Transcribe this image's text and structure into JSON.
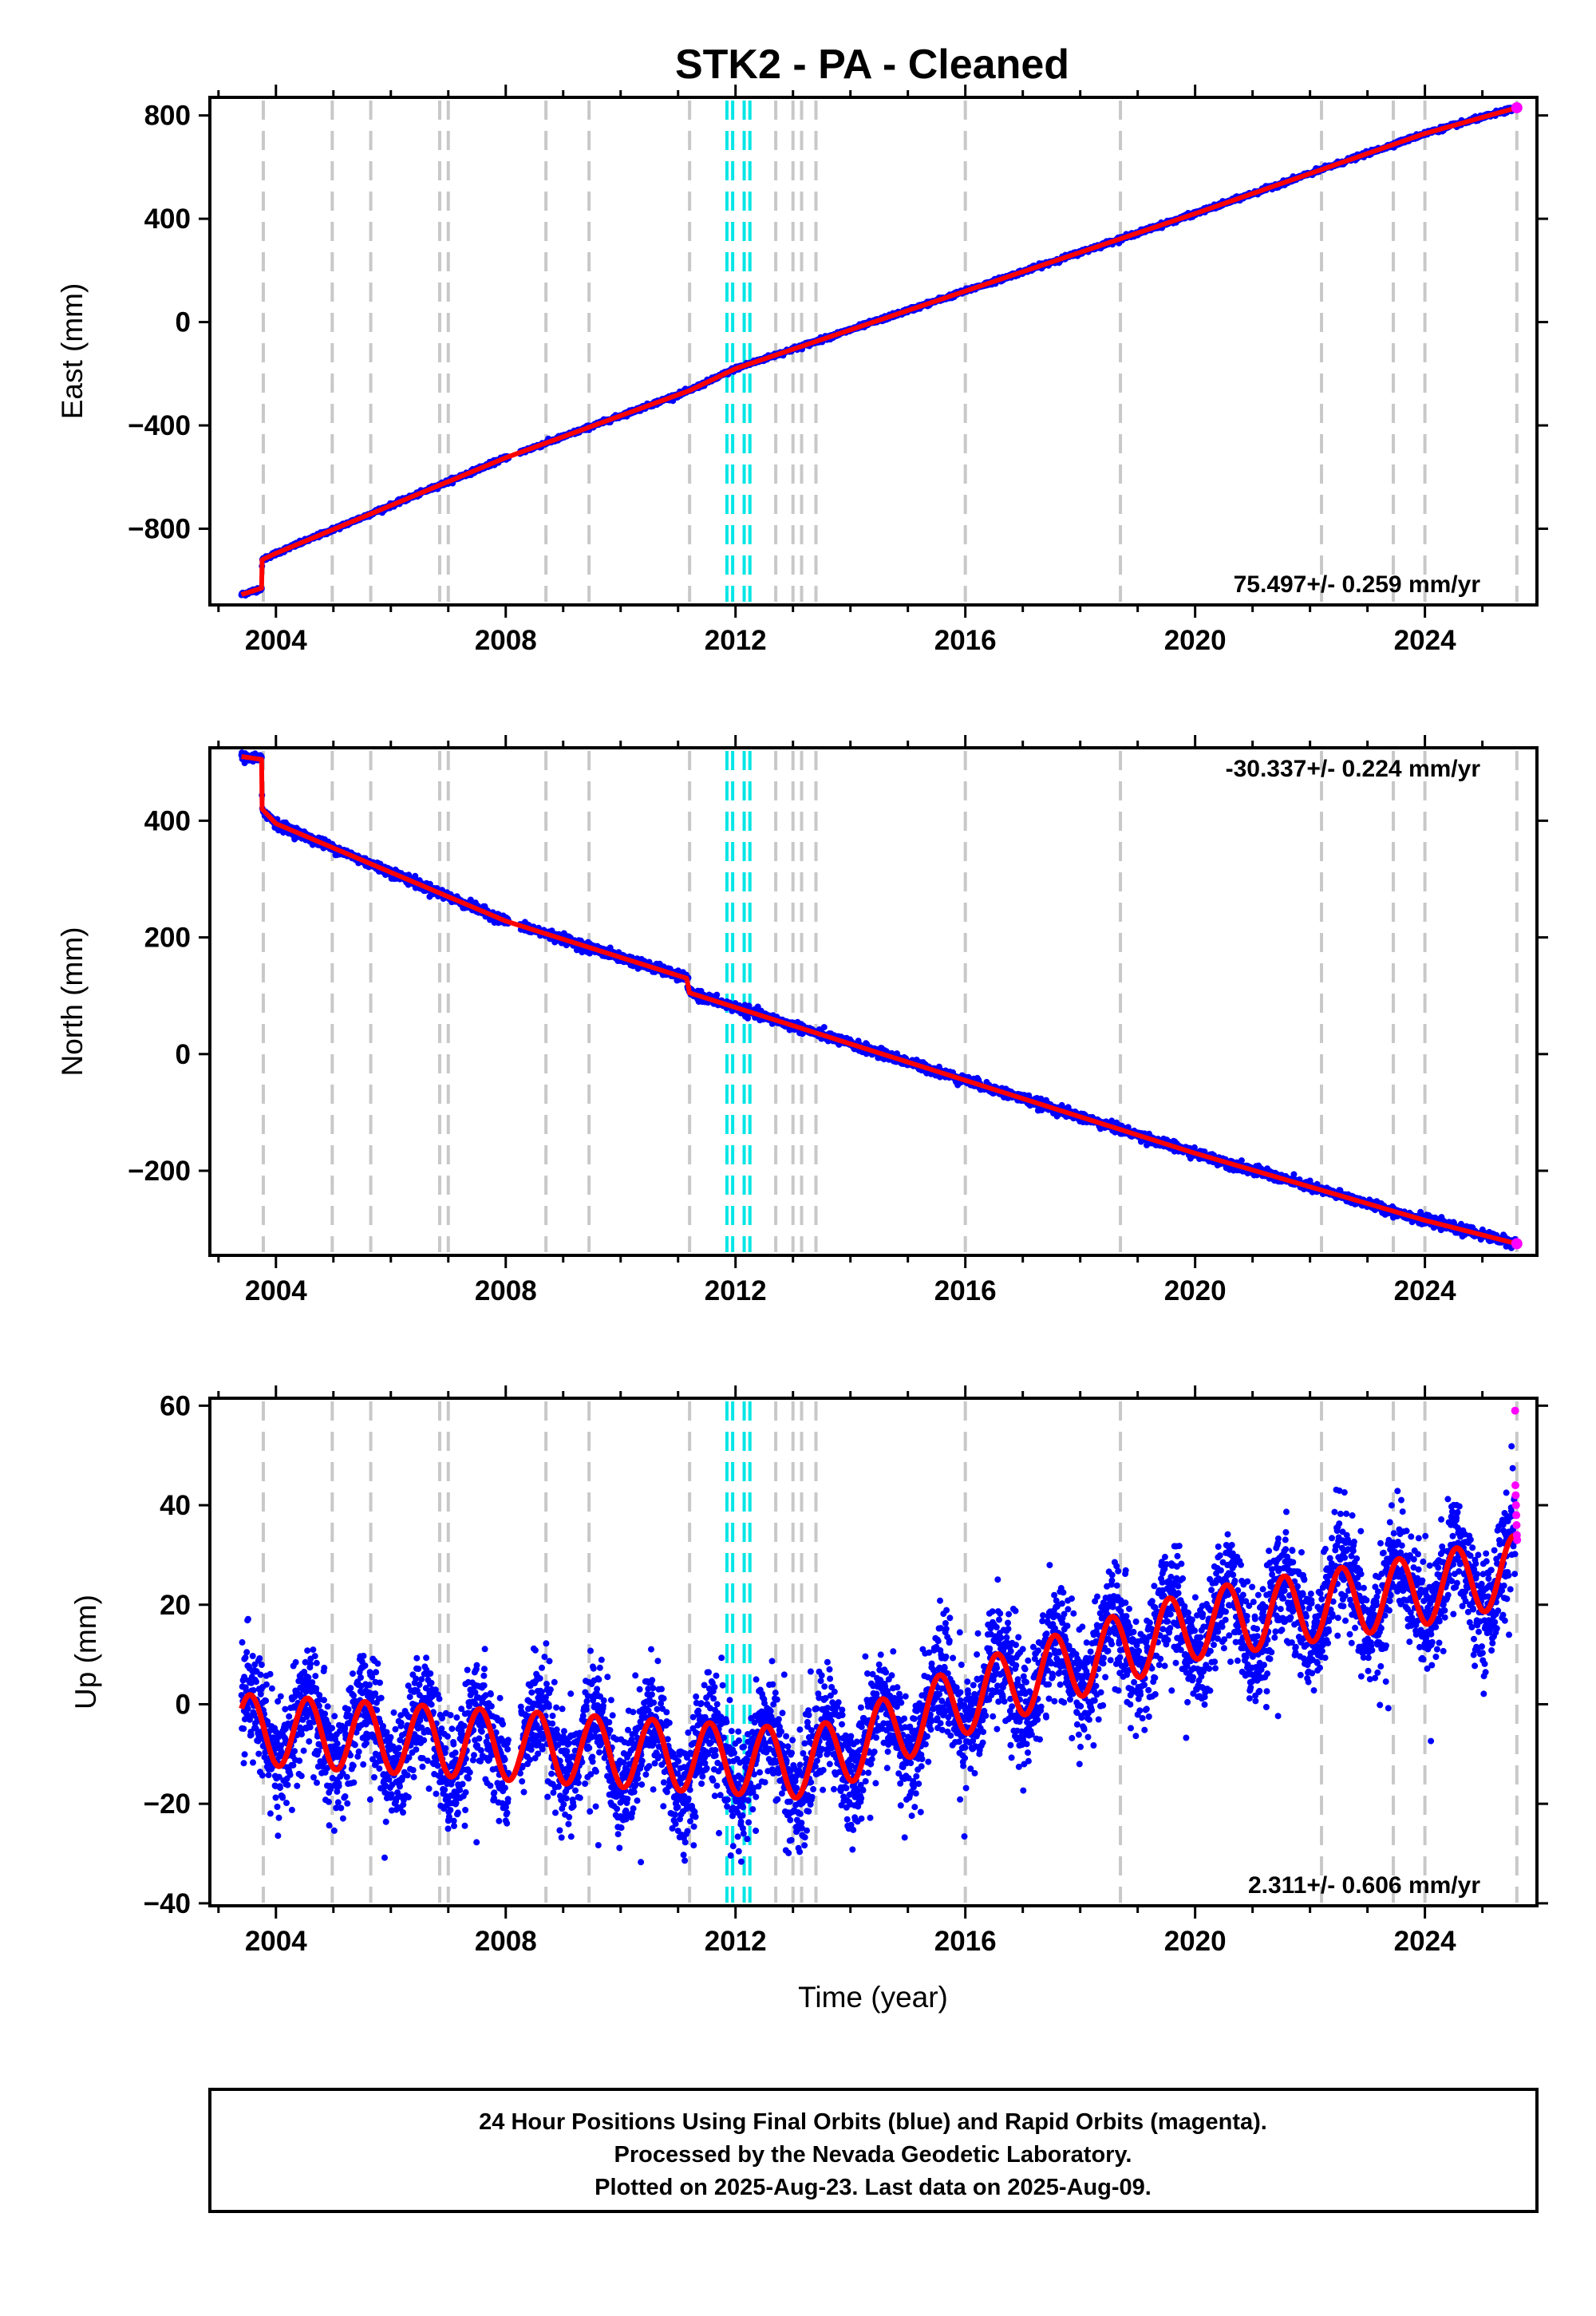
{
  "title": "STK2  - PA - Cleaned",
  "xlabel": "Time (year)",
  "footer": {
    "line1": "24 Hour Positions Using Final Orbits (blue) and Rapid Orbits (magenta).",
    "line2": "Processed by the Nevada Geodetic Laboratory.",
    "line3": "Plotted on 2025-Aug-23. Last data on 2025-Aug-09."
  },
  "colors": {
    "final_orbits": "#0000ff",
    "rapid_orbits": "#ff00ff",
    "model_fit": "#ff0000",
    "equipment_change": "#c8c8c8",
    "earthquake": "#00e5e5"
  },
  "chart_data": [
    {
      "type": "scatter",
      "component": "East",
      "ylabel": "East (mm)",
      "rate_label": "75.497+/- 0.259 mm/yr",
      "xlim": [
        2002.85,
        2025.95
      ],
      "ylim": [
        -1095,
        870
      ],
      "yticks": [
        -800,
        -400,
        0,
        400,
        800
      ],
      "xticks": [
        2004,
        2008,
        2012,
        2016,
        2020,
        2024
      ],
      "grid": false,
      "series": [
        {
          "name": "Final Orbits",
          "marker": "blue dots"
        },
        {
          "name": "Rapid Orbits",
          "marker": "magenta dots"
        },
        {
          "name": "Model",
          "marker": "red line"
        }
      ],
      "trend_points": [
        [
          2003.4,
          -1055
        ],
        [
          2003.75,
          -1030
        ],
        [
          2003.76,
          -920
        ],
        [
          2004.0,
          -895
        ],
        [
          2008.0,
          -525
        ],
        [
          2011.2,
          -265
        ],
        [
          2012.0,
          -180
        ],
        [
          2016.0,
          120
        ],
        [
          2020.0,
          420
        ],
        [
          2024.0,
          730
        ],
        [
          2025.6,
          830
        ]
      ]
    },
    {
      "type": "scatter",
      "component": "North",
      "ylabel": "North (mm)",
      "rate_label": "-30.337+/- 0.224 mm/yr",
      "xlim": [
        2002.85,
        2025.95
      ],
      "ylim": [
        -345,
        525
      ],
      "yticks": [
        -200,
        0,
        200,
        400
      ],
      "xticks": [
        2004,
        2008,
        2012,
        2016,
        2020,
        2024
      ],
      "grid": false,
      "series": [
        {
          "name": "Final Orbits",
          "marker": "blue dots"
        },
        {
          "name": "Rapid Orbits",
          "marker": "magenta dots"
        },
        {
          "name": "Model",
          "marker": "red line"
        }
      ],
      "trend_points": [
        [
          2003.4,
          510
        ],
        [
          2003.75,
          505
        ],
        [
          2003.76,
          420
        ],
        [
          2004.0,
          395
        ],
        [
          2008.0,
          228
        ],
        [
          2011.15,
          130
        ],
        [
          2011.2,
          105
        ],
        [
          2012.0,
          80
        ],
        [
          2016.0,
          -45
        ],
        [
          2020.0,
          -170
        ],
        [
          2024.0,
          -285
        ],
        [
          2025.6,
          -325
        ]
      ]
    },
    {
      "type": "scatter",
      "component": "Up",
      "ylabel": "Up (mm)",
      "rate_label": "2.311+/- 0.606 mm/yr",
      "xlim": [
        2002.85,
        2025.95
      ],
      "ylim": [
        -40.5,
        61.5
      ],
      "yticks": [
        -40,
        -20,
        0,
        20,
        40,
        60
      ],
      "xticks": [
        2004,
        2008,
        2012,
        2016,
        2020,
        2024
      ],
      "grid": false,
      "series": [
        {
          "name": "Final Orbits",
          "marker": "blue dots"
        },
        {
          "name": "Rapid Orbits",
          "marker": "magenta dots"
        },
        {
          "name": "Model",
          "marker": "red line"
        }
      ],
      "trend_points": [
        [
          2003.4,
          -5
        ],
        [
          2013.3,
          -12
        ],
        [
          2016.0,
          1
        ],
        [
          2020.0,
          16
        ],
        [
          2024.0,
          23
        ],
        [
          2025.6,
          27
        ]
      ],
      "seasonal_amplitude_mm": 7,
      "rapid_orbit_values": [
        59,
        44,
        42,
        40,
        38,
        36,
        34,
        33
      ]
    }
  ],
  "events": {
    "equipment_changes": [
      2003.78,
      2004.98,
      2005.65,
      2006.85,
      2007.0,
      2008.7,
      2009.45,
      2011.2,
      2012.7,
      2013.0,
      2013.15,
      2013.4,
      2016.0,
      2018.7,
      2022.2,
      2023.45,
      2024.0,
      2025.6
    ],
    "earthquakes": [
      2011.85,
      2011.95,
      2012.15,
      2012.25
    ]
  }
}
